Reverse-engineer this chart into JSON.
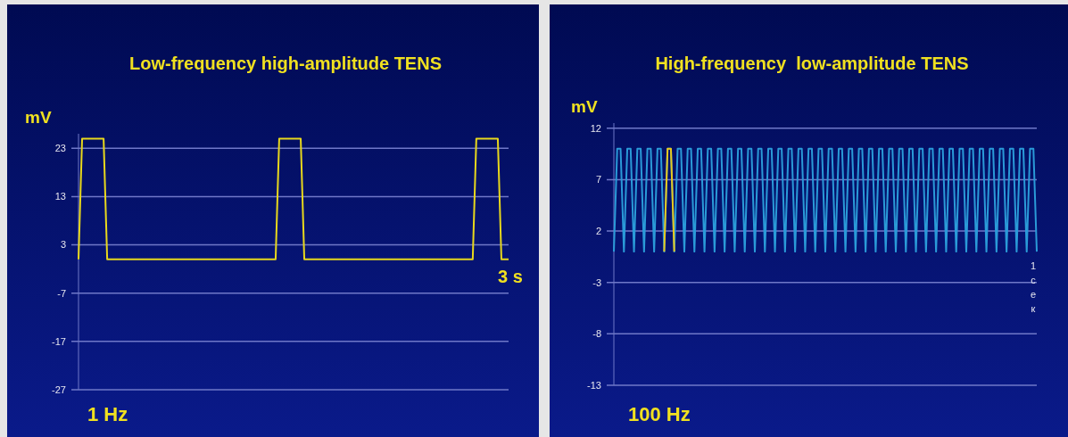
{
  "chart_data": [
    {
      "type": "line",
      "title": "Low-frequency high-amplitude TENS",
      "ylabel": "mV",
      "categories": [
        null,
        null,
        null,
        null,
        null,
        null,
        null,
        null,
        null,
        null,
        null,
        null,
        null,
        null,
        null,
        null,
        null,
        null,
        null,
        null,
        null,
        null,
        null,
        null,
        null,
        null,
        null,
        null,
        null,
        null,
        null,
        null,
        null,
        null,
        null,
        null,
        null,
        null,
        null,
        null,
        null,
        null,
        null,
        null,
        null,
        null,
        null,
        null,
        null,
        null,
        null,
        null,
        null,
        null,
        null,
        null,
        null,
        null,
        null,
        null,
        null,
        null,
        null,
        null,
        null,
        null,
        null,
        null,
        null,
        null,
        null,
        null,
        null,
        null,
        null,
        null,
        null,
        null,
        null,
        null,
        null,
        null,
        null,
        null,
        null,
        null,
        null,
        null,
        null,
        null,
        null,
        null,
        null,
        null,
        null,
        null,
        null,
        null,
        null,
        null,
        null,
        null,
        null,
        null,
        null,
        null,
        null,
        null,
        null,
        null,
        null,
        null,
        null,
        null,
        null,
        null,
        null,
        null,
        null,
        null,
        null
      ],
      "series": [
        {
          "color": "#e8d81c",
          "values": [
            0,
            25,
            25,
            25,
            25,
            25,
            25,
            25,
            0,
            0,
            0,
            0,
            0,
            0,
            0,
            0,
            0,
            0,
            0,
            0,
            0,
            0,
            0,
            0,
            0,
            0,
            0,
            0,
            0,
            0,
            0,
            0,
            0,
            0,
            0,
            0,
            0,
            0,
            0,
            0,
            0,
            0,
            0,
            0,
            0,
            0,
            0,
            0,
            0,
            0,
            0,
            0,
            0,
            0,
            0,
            0,
            25,
            25,
            25,
            25,
            25,
            25,
            25,
            0,
            0,
            0,
            0,
            0,
            0,
            0,
            0,
            0,
            0,
            0,
            0,
            0,
            0,
            0,
            0,
            0,
            0,
            0,
            0,
            0,
            0,
            0,
            0,
            0,
            0,
            0,
            0,
            0,
            0,
            0,
            0,
            0,
            0,
            0,
            0,
            0,
            0,
            0,
            0,
            0,
            0,
            0,
            0,
            0,
            0,
            0,
            0,
            25,
            25,
            25,
            25,
            25,
            25,
            25,
            0,
            0,
            0
          ]
        }
      ],
      "ylim": [
        -27,
        26
      ],
      "yticks": [
        23,
        13,
        3,
        -7,
        -17,
        -27
      ],
      "grid": "y",
      "line_style": "solid",
      "marker": "none",
      "annotations": [
        "1 Hz",
        "3 s"
      ]
    },
    {
      "type": "line",
      "title": "High-frequency  low-amplitude TENS",
      "ylabel": "mV",
      "categories": [
        null,
        null,
        null,
        null,
        null,
        null,
        null,
        null,
        null,
        null,
        null,
        null,
        null,
        null,
        null,
        null,
        null,
        null,
        null,
        null,
        null,
        null,
        null,
        null,
        null,
        null,
        null,
        null,
        null,
        null,
        null,
        null,
        null,
        null,
        null,
        null,
        null,
        null,
        null,
        null,
        null,
        null,
        null,
        null,
        null,
        null,
        null,
        null,
        null,
        null,
        null,
        null,
        null,
        null,
        null,
        null,
        null,
        null,
        null,
        null,
        null,
        null,
        null,
        null,
        null,
        null,
        null,
        null,
        null,
        null,
        null,
        null,
        null,
        null,
        null,
        null,
        null,
        null,
        null,
        null,
        null,
        null,
        null,
        null,
        null,
        null,
        null,
        null,
        null,
        null,
        null,
        null,
        null,
        null,
        null,
        null,
        null,
        null,
        null,
        null,
        null,
        null,
        null,
        null,
        null,
        null,
        null,
        null,
        null,
        null,
        null,
        null,
        null,
        null,
        null,
        null,
        null,
        null,
        null,
        null,
        null,
        null,
        null,
        null,
        null,
        null,
        null
      ],
      "series": [
        {
          "color": "#2a9ad8",
          "values": [
            0,
            10,
            10,
            0,
            10,
            10,
            0,
            10,
            10,
            0,
            10,
            10,
            0,
            10,
            10,
            0,
            10,
            10,
            0,
            10,
            10,
            0,
            10,
            10,
            0,
            10,
            10,
            0,
            10,
            10,
            0,
            10,
            10,
            0,
            10,
            10,
            0,
            10,
            10,
            0,
            10,
            10,
            0,
            10,
            10,
            0,
            10,
            10,
            0,
            10,
            10,
            0,
            10,
            10,
            0,
            10,
            10,
            0,
            10,
            10,
            0,
            10,
            10,
            0,
            10,
            10,
            0,
            10,
            10,
            0,
            10,
            10,
            0,
            10,
            10,
            0,
            10,
            10,
            0,
            10,
            10,
            0,
            10,
            10,
            0,
            10,
            10,
            0,
            10,
            10,
            0,
            10,
            10,
            0,
            10,
            10,
            0,
            10,
            10,
            0,
            10,
            10,
            0,
            10,
            10,
            0,
            10,
            10,
            0,
            10,
            10,
            0,
            10,
            10,
            0,
            10,
            10,
            0,
            10,
            10,
            0,
            10,
            10,
            0,
            10,
            10,
            0
          ]
        },
        {
          "color": "#e8c81c",
          "values": [
            null,
            null,
            null,
            null,
            null,
            null,
            null,
            null,
            null,
            null,
            null,
            null,
            null,
            null,
            null,
            0,
            10,
            10,
            0,
            null,
            null,
            null,
            null,
            null,
            null,
            null,
            null,
            null,
            null,
            null,
            null,
            null,
            null,
            null,
            null,
            null,
            null,
            null,
            null,
            null,
            null,
            null,
            null,
            null,
            null,
            null,
            null,
            null,
            null,
            null,
            null,
            null,
            null,
            null,
            null,
            null,
            null,
            null,
            null,
            null,
            null,
            null,
            null,
            null,
            null,
            null,
            null,
            null,
            null,
            null,
            null,
            null,
            null,
            null,
            null,
            null,
            null,
            null,
            null,
            null,
            null,
            null,
            null,
            null,
            null,
            null,
            null,
            null,
            null,
            null,
            null,
            null,
            null,
            null,
            null,
            null,
            null,
            null,
            null,
            null,
            null,
            null,
            null,
            null,
            null,
            null,
            null,
            null,
            null,
            null,
            null,
            null,
            null,
            null,
            null,
            null,
            null,
            null,
            null,
            null,
            null,
            null,
            null,
            null,
            null,
            null,
            null
          ]
        }
      ],
      "ylim": [
        -13,
        12.5
      ],
      "yticks": [
        12,
        7,
        2,
        -3,
        -8,
        -13
      ],
      "grid": "y",
      "line_style": "solid",
      "marker": "none",
      "annotations": [
        "100 Hz",
        "1 сек"
      ]
    }
  ]
}
